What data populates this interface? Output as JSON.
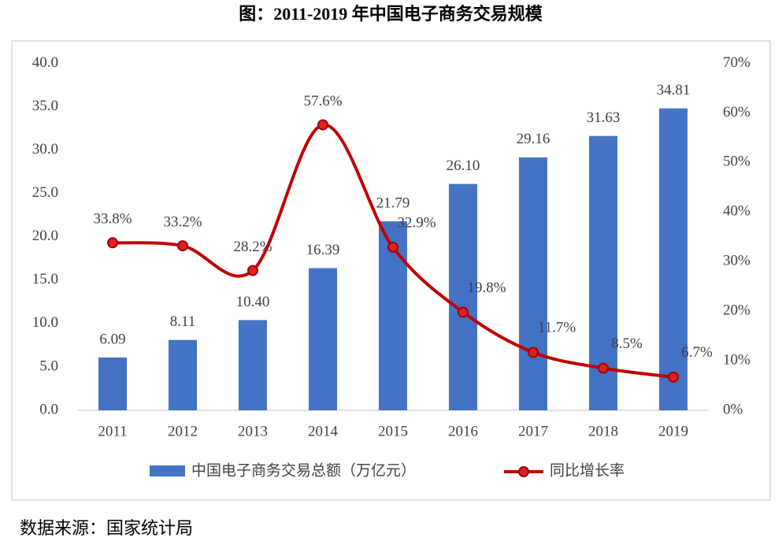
{
  "chart_data": {
    "type": "bar",
    "title": "图：2011-2019 年中国电子商务交易规模",
    "categories": [
      "2011",
      "2012",
      "2013",
      "2014",
      "2015",
      "2016",
      "2017",
      "2018",
      "2019"
    ],
    "series": [
      {
        "name": "中国电子商务交易总额（万亿元）",
        "type": "bar",
        "color": "#4472c4",
        "values": [
          6.09,
          8.11,
          10.4,
          16.39,
          21.79,
          26.1,
          29.16,
          31.63,
          34.81
        ],
        "value_labels": [
          "6.09",
          "8.11",
          "10.40",
          "16.39",
          "21.79",
          "26.10",
          "29.16",
          "31.63",
          "34.81"
        ]
      },
      {
        "name": "同比增长率",
        "type": "line",
        "axis": "y2",
        "color": "#c00000",
        "values": [
          33.8,
          33.2,
          28.2,
          57.6,
          32.9,
          19.8,
          11.7,
          8.5,
          6.7
        ],
        "value_labels": [
          "33.8%",
          "33.2%",
          "28.2%",
          "57.6%",
          "32.9%",
          "19.8%",
          "11.7%",
          "8.5%",
          "6.7%"
        ]
      }
    ],
    "ylim": [
      0,
      40
    ],
    "yticks": [
      {
        "value": 0,
        "label": "0.0"
      },
      {
        "value": 5,
        "label": "5.0"
      },
      {
        "value": 10,
        "label": "10.0"
      },
      {
        "value": 15,
        "label": "15.0"
      },
      {
        "value": 20,
        "label": "20.0"
      },
      {
        "value": 25,
        "label": "25.0"
      },
      {
        "value": 30,
        "label": "30.0"
      },
      {
        "value": 35,
        "label": "35.0"
      },
      {
        "value": 40,
        "label": "40.0"
      }
    ],
    "y2lim": [
      0,
      70
    ],
    "y2ticks": [
      {
        "value": 0,
        "label": "0%"
      },
      {
        "value": 10,
        "label": "10%"
      },
      {
        "value": 20,
        "label": "20%"
      },
      {
        "value": 30,
        "label": "30%"
      },
      {
        "value": 40,
        "label": "40%"
      },
      {
        "value": 50,
        "label": "50%"
      },
      {
        "value": 60,
        "label": "60%"
      },
      {
        "value": 70,
        "label": "70%"
      }
    ]
  },
  "source": "数据来源：国家统计局"
}
